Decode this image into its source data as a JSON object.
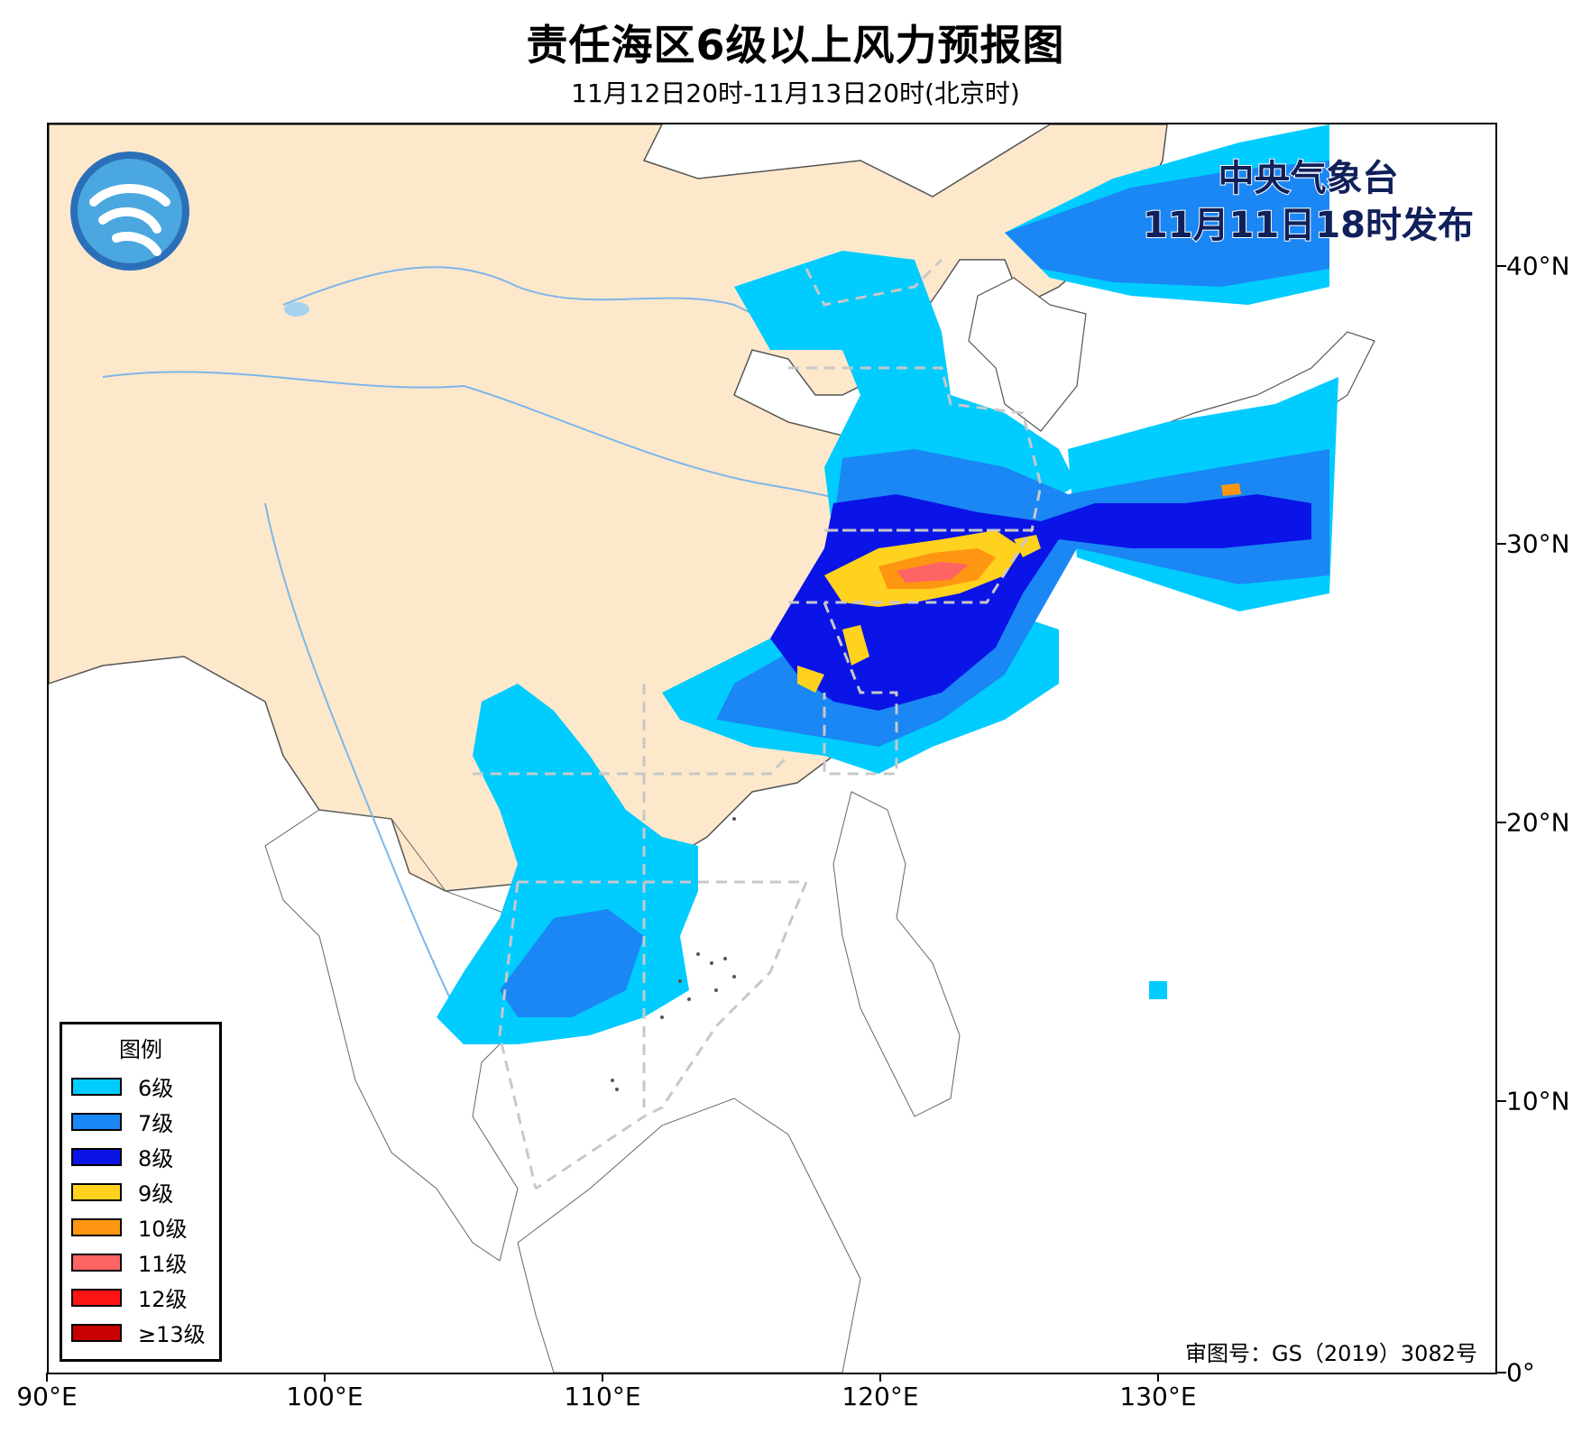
{
  "title": "责任海区6级以上风力预报图",
  "subtitle": "11月12日20时-11月13日20时(北京时)",
  "issuer": {
    "line1": "中央气象台",
    "line2": "11月11日18时发布"
  },
  "approval": "审图号：GS（2019）3082号",
  "legend": {
    "title": "图例",
    "items": [
      {
        "label": "6级",
        "color": "#00ccff"
      },
      {
        "label": "7级",
        "color": "#1a87f5"
      },
      {
        "label": "8级",
        "color": "#0a14e6"
      },
      {
        "label": "9级",
        "color": "#ffd21e"
      },
      {
        "label": "10级",
        "color": "#ff9612"
      },
      {
        "label": "11级",
        "color": "#ff6464"
      },
      {
        "label": "12级",
        "color": "#ff1414"
      },
      {
        "label": "≥13级",
        "color": "#c80000"
      }
    ]
  },
  "axes": {
    "x_ticks": [
      "90°E",
      "100°E",
      "110°E",
      "120°E",
      "130°E"
    ],
    "y_ticks": [
      "40°N",
      "30°N",
      "20°N",
      "10°N",
      "0°"
    ]
  },
  "colors": {
    "land_china": "#fde8cc",
    "river": "#7fb6e8",
    "boundary": "#555555",
    "zone_line": "#c8c8c8"
  }
}
